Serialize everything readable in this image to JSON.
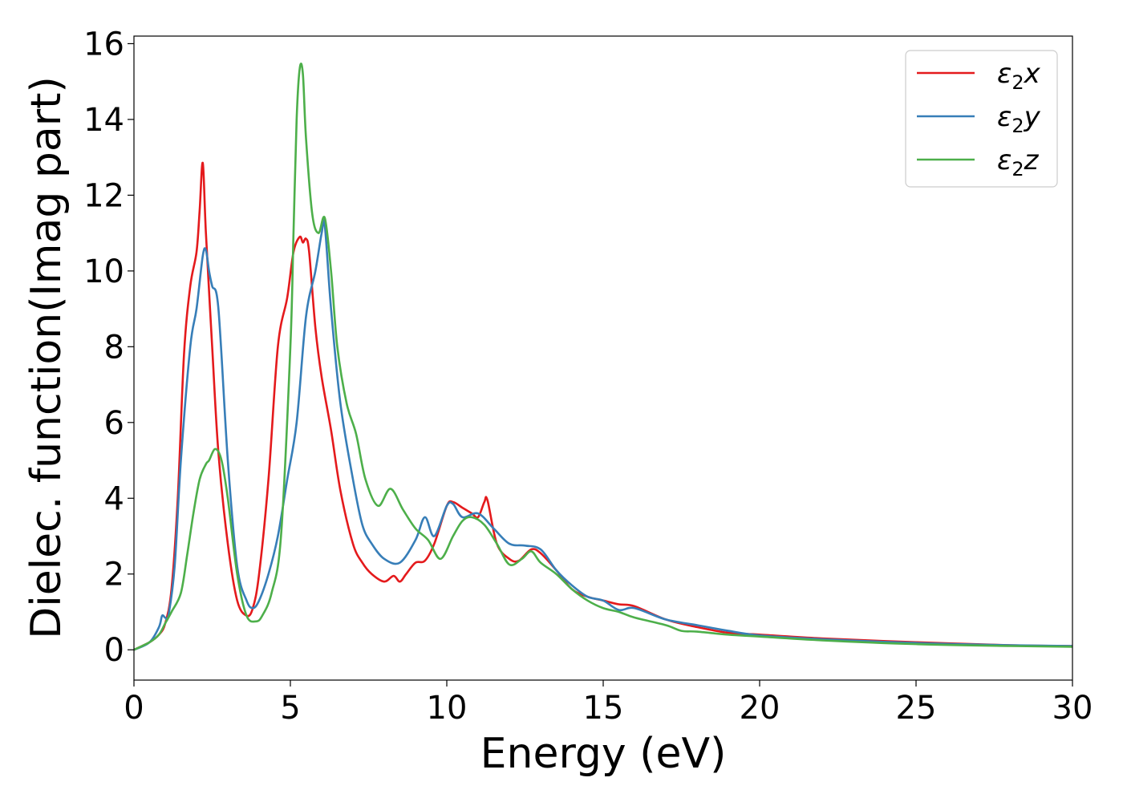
{
  "chart_data": {
    "type": "line",
    "title": "",
    "xlabel": "Energy (eV)",
    "ylabel": "Dielec. function(Imag part)",
    "xlim": [
      0,
      30
    ],
    "ylim": [
      -0.8,
      16.2
    ],
    "xticks": [
      0,
      5,
      10,
      15,
      20,
      25,
      30
    ],
    "xtick_labels": [
      "0",
      "5",
      "10",
      "15",
      "20",
      "25",
      "30"
    ],
    "yticks": [
      0,
      2,
      4,
      6,
      8,
      10,
      12,
      14,
      16
    ],
    "ytick_labels": [
      "0",
      "2",
      "4",
      "6",
      "8",
      "10",
      "12",
      "14",
      "16"
    ],
    "grid": false,
    "legend_position": "top-right",
    "series": [
      {
        "name": "ε₂x",
        "legend_base": "ε",
        "legend_sub": "2",
        "legend_suffix": "x",
        "color": "#e41a1c",
        "x": [
          0,
          0.5,
          0.8,
          1.0,
          1.2,
          1.4,
          1.6,
          1.8,
          2.0,
          2.1,
          2.2,
          2.3,
          2.5,
          2.7,
          3.0,
          3.3,
          3.6,
          3.8,
          4.0,
          4.3,
          4.6,
          4.9,
          5.1,
          5.3,
          5.4,
          5.5,
          5.6,
          5.8,
          6.0,
          6.3,
          6.6,
          7.0,
          7.3,
          7.6,
          8.0,
          8.3,
          8.5,
          8.7,
          9.0,
          9.3,
          9.6,
          10.0,
          10.2,
          10.5,
          10.8,
          11.0,
          11.2,
          11.3,
          11.6,
          12.0,
          12.3,
          12.7,
          13.0,
          13.5,
          14.0,
          14.5,
          15.0,
          15.5,
          16.0,
          17.0,
          18.0,
          19.0,
          20.0,
          22.0,
          25.0,
          28.0,
          30.0
        ],
        "values": [
          0.0,
          0.2,
          0.4,
          0.7,
          1.6,
          4.0,
          7.8,
          9.6,
          10.5,
          11.6,
          12.85,
          11.0,
          8.0,
          5.2,
          2.8,
          1.3,
          0.9,
          1.1,
          2.0,
          4.5,
          8.0,
          9.3,
          10.5,
          10.9,
          10.75,
          10.85,
          10.5,
          8.5,
          7.2,
          5.8,
          4.2,
          2.8,
          2.3,
          2.0,
          1.8,
          1.95,
          1.8,
          2.0,
          2.3,
          2.35,
          2.8,
          3.8,
          3.9,
          3.75,
          3.6,
          3.5,
          3.9,
          3.95,
          2.8,
          2.4,
          2.35,
          2.65,
          2.55,
          2.1,
          1.6,
          1.4,
          1.3,
          1.2,
          1.15,
          0.8,
          0.6,
          0.45,
          0.4,
          0.3,
          0.2,
          0.12,
          0.1
        ]
      },
      {
        "name": "ε₂y",
        "legend_base": "ε",
        "legend_sub": "2",
        "legend_suffix": "y",
        "color": "#377eb8",
        "x": [
          0,
          0.5,
          0.8,
          0.9,
          1.0,
          1.1,
          1.3,
          1.5,
          1.8,
          2.0,
          2.2,
          2.3,
          2.4,
          2.5,
          2.7,
          3.0,
          3.3,
          3.6,
          3.8,
          4.0,
          4.3,
          4.6,
          4.9,
          5.2,
          5.5,
          5.8,
          6.0,
          6.1,
          6.3,
          6.6,
          7.0,
          7.3,
          7.6,
          8.0,
          8.5,
          9.0,
          9.3,
          9.6,
          10.0,
          10.2,
          10.5,
          11.0,
          11.5,
          12.0,
          12.5,
          13.0,
          13.5,
          14.0,
          14.5,
          15.0,
          15.5,
          16.0,
          17.0,
          18.0,
          19.0,
          20.0,
          22.0,
          25.0,
          28.0,
          30.0
        ],
        "values": [
          0.0,
          0.2,
          0.6,
          0.9,
          0.85,
          0.9,
          2.2,
          5.0,
          8.0,
          9.0,
          10.4,
          10.55,
          10.0,
          9.6,
          9.0,
          5.0,
          2.2,
          1.3,
          1.1,
          1.3,
          2.0,
          3.0,
          4.5,
          6.0,
          8.8,
          10.0,
          11.0,
          11.2,
          9.0,
          6.5,
          4.5,
          3.3,
          2.8,
          2.4,
          2.3,
          2.9,
          3.5,
          3.0,
          3.8,
          3.85,
          3.5,
          3.6,
          3.2,
          2.8,
          2.75,
          2.65,
          2.1,
          1.7,
          1.4,
          1.3,
          1.05,
          1.1,
          0.8,
          0.65,
          0.5,
          0.38,
          0.28,
          0.18,
          0.12,
          0.1
        ]
      },
      {
        "name": "ε₂z",
        "legend_base": "ε",
        "legend_sub": "2",
        "legend_suffix": "z",
        "color": "#4daf4a",
        "x": [
          0,
          0.5,
          0.8,
          1.0,
          1.2,
          1.5,
          1.7,
          1.9,
          2.1,
          2.3,
          2.4,
          2.6,
          2.8,
          3.0,
          3.3,
          3.6,
          3.9,
          4.1,
          4.4,
          4.7,
          5.0,
          5.1,
          5.2,
          5.3,
          5.4,
          5.5,
          5.7,
          5.9,
          6.1,
          6.3,
          6.5,
          6.8,
          7.1,
          7.4,
          7.8,
          8.2,
          8.6,
          9.0,
          9.4,
          9.8,
          10.2,
          10.5,
          10.8,
          11.2,
          11.6,
          12.0,
          12.4,
          12.7,
          13.0,
          13.5,
          14.0,
          14.5,
          15.0,
          15.5,
          16.0,
          17.0,
          17.5,
          18.0,
          19.0,
          20.0,
          22.0,
          25.0,
          28.0,
          30.0
        ],
        "values": [
          0.0,
          0.2,
          0.4,
          0.7,
          1.0,
          1.5,
          2.5,
          3.6,
          4.5,
          4.9,
          5.0,
          5.3,
          5.0,
          4.0,
          2.0,
          0.9,
          0.75,
          0.9,
          1.5,
          3.0,
          8.0,
          11.0,
          14.0,
          15.35,
          15.2,
          13.5,
          11.5,
          11.0,
          11.4,
          10.0,
          8.0,
          6.5,
          5.7,
          4.5,
          3.8,
          4.25,
          3.7,
          3.2,
          2.9,
          2.4,
          3.0,
          3.4,
          3.5,
          3.3,
          2.8,
          2.25,
          2.4,
          2.6,
          2.3,
          2.0,
          1.6,
          1.3,
          1.1,
          1.0,
          0.85,
          0.65,
          0.5,
          0.48,
          0.4,
          0.35,
          0.25,
          0.15,
          0.1,
          0.08
        ]
      }
    ]
  }
}
